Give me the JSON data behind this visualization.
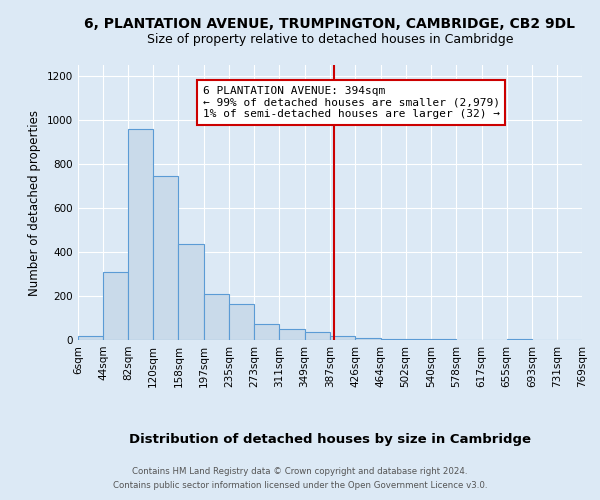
{
  "title": "6, PLANTATION AVENUE, TRUMPINGTON, CAMBRIDGE, CB2 9DL",
  "subtitle": "Size of property relative to detached houses in Cambridge",
  "xlabel": "Distribution of detached houses by size in Cambridge",
  "ylabel": "Number of detached properties",
  "footnote1": "Contains HM Land Registry data © Crown copyright and database right 2024.",
  "footnote2": "Contains public sector information licensed under the Open Government Licence v3.0.",
  "bin_edges": [
    6,
    44,
    82,
    120,
    158,
    197,
    235,
    273,
    311,
    349,
    387,
    426,
    464,
    502,
    540,
    578,
    617,
    655,
    693,
    731,
    769
  ],
  "bar_heights": [
    20,
    310,
    960,
    745,
    435,
    210,
    165,
    75,
    50,
    35,
    20,
    10,
    5,
    5,
    5,
    0,
    0,
    5,
    0,
    0
  ],
  "bar_color": "#c9daea",
  "bar_edge_color": "#5b9bd5",
  "vline_x": 394,
  "vline_color": "#cc0000",
  "annotation_title": "6 PLANTATION AVENUE: 394sqm",
  "annotation_line1": "← 99% of detached houses are smaller (2,979)",
  "annotation_line2": "1% of semi-detached houses are larger (32) →",
  "annotation_box_color": "#ffffff",
  "annotation_box_edge": "#cc0000",
  "ylim": [
    0,
    1250
  ],
  "yticks": [
    0,
    200,
    400,
    600,
    800,
    1000,
    1200
  ],
  "background_color": "#dce9f5",
  "title_fontsize": 10,
  "subtitle_fontsize": 9,
  "xlabel_fontsize": 9.5,
  "ylabel_fontsize": 8.5,
  "tick_fontsize": 7.5,
  "annotation_fontsize": 8
}
